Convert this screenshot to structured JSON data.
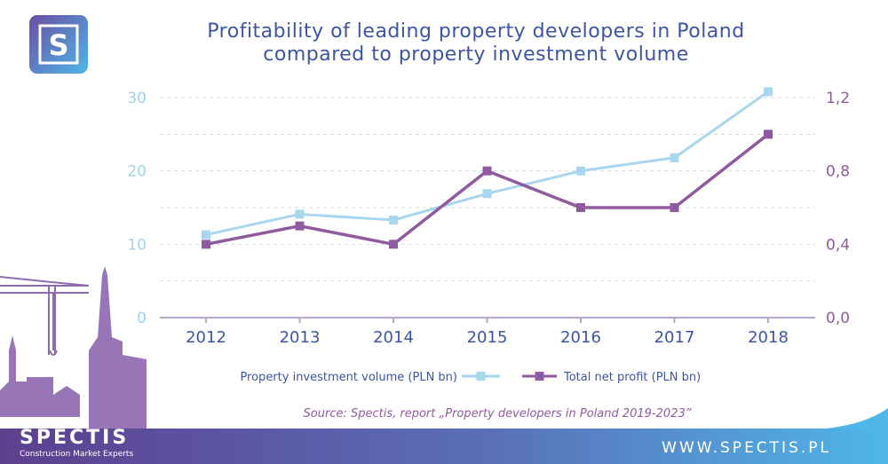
{
  "colors": {
    "investment": "#a8d6ee",
    "profit": "#8f5aa0",
    "title": "#3d55a3",
    "footer_left": "#5d3f8e",
    "footer_right": "#4fb6e8"
  },
  "logo": {
    "letter": "S"
  },
  "brand": {
    "name": "SPECTIS",
    "tagline": "Construction Market Experts"
  },
  "website": "WWW.SPECTIS.PL",
  "source": "Source: Spectis, report „Property developers in Poland 2019-2023”",
  "chart_data": {
    "type": "line",
    "title": "Profitability of leading property developers in Poland compared to property investment volume",
    "title_lines": [
      "Profitability of leading property developers in Poland",
      "compared to property investment volume"
    ],
    "categories": [
      "2012",
      "2013",
      "2014",
      "2015",
      "2016",
      "2017",
      "2018"
    ],
    "y_left": {
      "min": 0,
      "max": 30,
      "ticks": [
        "0",
        "10",
        "20",
        "30"
      ]
    },
    "y_right": {
      "min": 0,
      "max": 1.2,
      "ticks": [
        "0,0",
        "0,4",
        "0,8",
        "1,2"
      ]
    },
    "grid": true,
    "legend_position": "bottom",
    "series": [
      {
        "name": "Property investment volume (PLN bn)",
        "axis": "left",
        "color": "#a8d6ee",
        "values": [
          11.3,
          14.1,
          13.3,
          16.9,
          20.0,
          21.8,
          30.8
        ]
      },
      {
        "name": "Total net profit (PLN bn)",
        "axis": "right",
        "color": "#8f5aa0",
        "values": [
          0.4,
          0.5,
          0.4,
          0.8,
          0.6,
          0.6,
          1.0
        ]
      }
    ]
  }
}
